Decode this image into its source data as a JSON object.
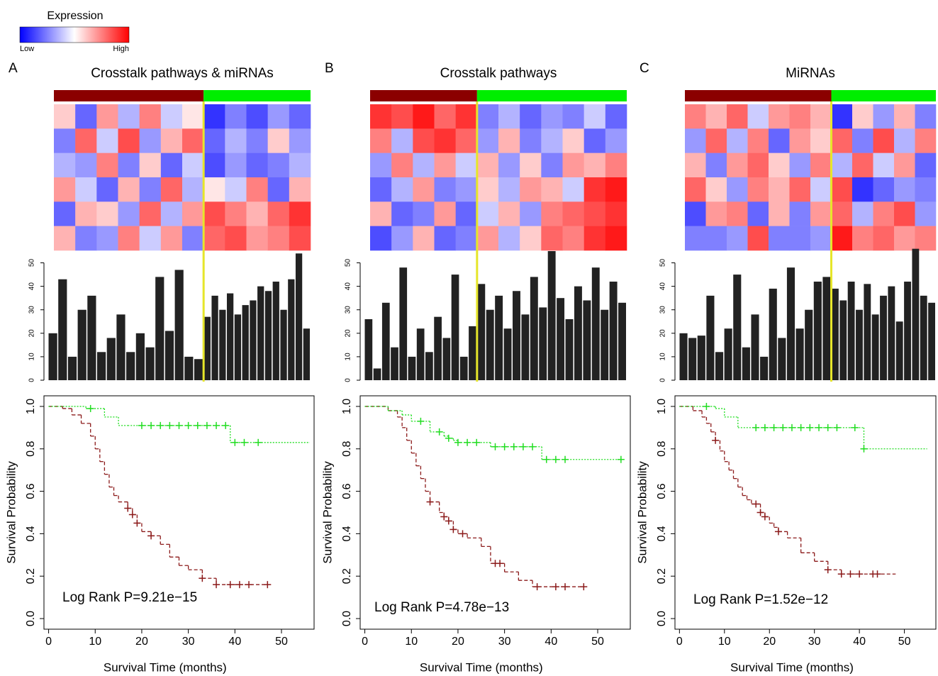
{
  "legend": {
    "title": "Expression",
    "low": "Low",
    "high": "High"
  },
  "chart_data": [
    {
      "label": "A",
      "title": "Crosstalk pathways & miRNAs",
      "heatmap": {
        "type": "heatmap",
        "group_colors": [
          "#8b0000",
          "#00ee00"
        ],
        "split": 7,
        "values": [
          [
            0.2,
            -0.6,
            0.4,
            -0.3,
            0.5,
            -0.2,
            0.1,
            -0.8,
            -0.5,
            -0.7,
            -0.4,
            -0.6
          ],
          [
            -0.5,
            0.6,
            -0.2,
            0.7,
            -0.4,
            0.3,
            0.6,
            -0.6,
            -0.3,
            -0.5,
            0.2,
            -0.4
          ],
          [
            -0.3,
            -0.4,
            0.5,
            -0.5,
            0.2,
            -0.6,
            -0.2,
            -0.7,
            -0.4,
            -0.6,
            -0.5,
            -0.3
          ],
          [
            0.4,
            -0.2,
            -0.6,
            0.3,
            -0.5,
            0.6,
            -0.3,
            0.1,
            -0.2,
            0.5,
            -0.6,
            0.3
          ],
          [
            -0.6,
            0.3,
            0.2,
            -0.4,
            0.6,
            -0.3,
            0.4,
            0.7,
            0.5,
            0.3,
            0.6,
            0.8
          ],
          [
            0.3,
            -0.5,
            -0.4,
            0.5,
            -0.2,
            0.4,
            -0.5,
            0.6,
            0.7,
            0.4,
            0.5,
            0.7
          ]
        ]
      },
      "bars": {
        "type": "bar",
        "color": "#222222",
        "split": 16,
        "ylim": [
          0,
          55
        ],
        "yticks": [
          0,
          10,
          20,
          30,
          40,
          50
        ],
        "values": [
          20,
          43,
          10,
          30,
          36,
          12,
          18,
          28,
          12,
          20,
          14,
          44,
          21,
          47,
          10,
          9,
          27,
          36,
          30,
          37,
          28,
          32,
          34,
          40,
          38,
          42,
          30,
          43,
          54,
          22
        ]
      },
      "survival": {
        "type": "line",
        "xlabel": "Survival Time (months)",
        "ylabel": "Survival Probability",
        "annotation": "Log Rank P=9.21e−15",
        "xlim": [
          -1,
          57
        ],
        "ylim": [
          -0.05,
          1.05
        ],
        "xticks": [
          0,
          10,
          20,
          30,
          40,
          50
        ],
        "yticks": [
          {
            "value": 0,
            "label": "0.0"
          },
          0.2,
          0.4,
          0.6,
          0.8,
          {
            "value": 1,
            "label": "1.0"
          }
        ],
        "series": [
          {
            "color": "#8b1a1a",
            "dash": "5,3",
            "x": [
              0,
              3,
              5,
              7,
              9,
              10,
              11,
              12,
              13,
              14,
              15,
              17,
              18,
              19,
              20,
              22,
              24,
              26,
              28,
              30,
              33,
              36,
              47
            ],
            "values": [
              1,
              0.99,
              0.96,
              0.92,
              0.86,
              0.8,
              0.74,
              0.68,
              0.62,
              0.58,
              0.55,
              0.52,
              0.49,
              0.45,
              0.41,
              0.39,
              0.35,
              0.29,
              0.25,
              0.23,
              0.19,
              0.16,
              0.16
            ],
            "censored_x": [
              17,
              18,
              19,
              22,
              33,
              36,
              39,
              41,
              43,
              47
            ]
          },
          {
            "color": "#22dd22",
            "dash": "2,2",
            "x": [
              0,
              8,
              12,
              15,
              17,
              39,
              56
            ],
            "values": [
              1,
              0.99,
              0.95,
              0.91,
              0.91,
              0.83,
              0.83
            ],
            "censored_x": [
              9,
              20,
              22,
              24,
              26,
              28,
              30,
              32,
              34,
              36,
              38,
              40,
              42,
              45
            ]
          }
        ]
      }
    },
    {
      "label": "B",
      "title": "Crosstalk pathways",
      "heatmap": {
        "type": "heatmap",
        "group_colors": [
          "#8b0000",
          "#00ee00"
        ],
        "split": 5,
        "values": [
          [
            0.8,
            0.7,
            0.9,
            0.6,
            0.8,
            -0.5,
            -0.3,
            -0.6,
            -0.4,
            -0.5,
            -0.2,
            -0.6
          ],
          [
            0.5,
            -0.3,
            0.7,
            0.8,
            0.6,
            -0.4,
            0.3,
            -0.5,
            -0.3,
            0.2,
            -0.6,
            -0.4
          ],
          [
            -0.4,
            0.5,
            -0.3,
            0.4,
            -0.2,
            0.3,
            -0.4,
            0.2,
            -0.5,
            0.4,
            0.3,
            0.5
          ],
          [
            -0.6,
            -0.3,
            0.4,
            -0.5,
            -0.4,
            0.2,
            -0.3,
            0.4,
            0.3,
            -0.2,
            0.8,
            0.9
          ],
          [
            0.3,
            -0.6,
            -0.5,
            0.4,
            -0.6,
            -0.2,
            0.3,
            -0.4,
            0.5,
            0.6,
            0.7,
            0.8
          ],
          [
            -0.7,
            -0.4,
            0.3,
            -0.6,
            -0.5,
            0.4,
            -0.3,
            0.2,
            0.6,
            0.5,
            0.8,
            0.9
          ]
        ]
      },
      "bars": {
        "type": "bar",
        "color": "#222222",
        "split": 13,
        "ylim": [
          0,
          55
        ],
        "yticks": [
          0,
          10,
          20,
          30,
          40,
          50
        ],
        "values": [
          26,
          5,
          33,
          14,
          48,
          10,
          22,
          12,
          27,
          18,
          45,
          10,
          23,
          41,
          30,
          36,
          22,
          38,
          28,
          44,
          31,
          55,
          35,
          26,
          40,
          34,
          48,
          30,
          42,
          33
        ]
      },
      "survival": {
        "type": "line",
        "xlabel": "Survival Time (months)",
        "ylabel": "Survival Probability",
        "annotation": "Log Rank P=4.78e−13",
        "xlim": [
          -1,
          57
        ],
        "ylim": [
          -0.05,
          1.05
        ],
        "xticks": [
          0,
          10,
          20,
          30,
          40,
          50
        ],
        "yticks": [
          {
            "value": 0,
            "label": "0.0"
          },
          0.2,
          0.4,
          0.6,
          0.8,
          {
            "value": 1,
            "label": "1.0"
          }
        ],
        "series": [
          {
            "color": "#8b1a1a",
            "dash": "5,3",
            "x": [
              0,
              5,
              7,
              8,
              9,
              10,
              11,
              12,
              13,
              14,
              16,
              17,
              18,
              19,
              20,
              22,
              25,
              27,
              30,
              33,
              36,
              47
            ],
            "values": [
              1,
              0.98,
              0.95,
              0.9,
              0.84,
              0.78,
              0.72,
              0.66,
              0.6,
              0.55,
              0.5,
              0.48,
              0.46,
              0.42,
              0.4,
              0.38,
              0.34,
              0.26,
              0.22,
              0.18,
              0.15,
              0.15
            ],
            "censored_x": [
              14,
              17,
              18,
              19,
              21,
              28,
              29,
              37,
              41,
              43,
              47
            ]
          },
          {
            "color": "#22dd22",
            "dash": "2,2",
            "x": [
              0,
              5,
              8,
              10,
              14,
              17,
              18,
              19,
              20,
              23,
              27,
              33,
              38,
              55
            ],
            "values": [
              1,
              0.98,
              0.96,
              0.93,
              0.88,
              0.86,
              0.85,
              0.84,
              0.83,
              0.83,
              0.81,
              0.81,
              0.75,
              0.75
            ],
            "censored_x": [
              12,
              16,
              18,
              20,
              22,
              24,
              28,
              30,
              32,
              34,
              36,
              39,
              41,
              43,
              55
            ]
          }
        ]
      }
    },
    {
      "label": "C",
      "title": "MiRNAs",
      "heatmap": {
        "type": "heatmap",
        "group_colors": [
          "#8b0000",
          "#00ee00"
        ],
        "split": 7,
        "values": [
          [
            0.5,
            0.3,
            0.6,
            -0.2,
            0.4,
            0.5,
            0.3,
            -0.8,
            0.2,
            -0.4,
            0.3,
            -0.5
          ],
          [
            -0.4,
            0.6,
            -0.3,
            0.5,
            -0.6,
            0.4,
            0.2,
            0.6,
            -0.5,
            0.7,
            -0.3,
            0.5
          ],
          [
            0.3,
            -0.5,
            0.4,
            0.6,
            0.2,
            -0.4,
            0.5,
            -0.3,
            0.6,
            -0.2,
            0.4,
            -0.6
          ],
          [
            0.6,
            0.2,
            -0.4,
            0.5,
            0.3,
            0.6,
            -0.2,
            0.7,
            -0.8,
            -0.6,
            -0.4,
            -0.5
          ],
          [
            -0.7,
            0.4,
            0.5,
            -0.6,
            0.3,
            -0.5,
            0.4,
            0.6,
            -0.3,
            0.5,
            0.7,
            -0.4
          ],
          [
            -0.5,
            -0.5,
            -0.4,
            0.7,
            -0.5,
            -0.5,
            -0.4,
            0.9,
            0.5,
            0.6,
            0.4,
            0.5
          ]
        ]
      },
      "bars": {
        "type": "bar",
        "color": "#222222",
        "split": 17,
        "ylim": [
          0,
          55
        ],
        "yticks": [
          0,
          10,
          20,
          30,
          40,
          50
        ],
        "values": [
          20,
          18,
          19,
          36,
          12,
          22,
          45,
          14,
          28,
          10,
          39,
          18,
          48,
          22,
          30,
          42,
          44,
          39,
          34,
          42,
          30,
          41,
          28,
          36,
          40,
          25,
          42,
          56,
          36,
          33
        ]
      },
      "survival": {
        "type": "line",
        "xlabel": "Survival Time (months)",
        "ylabel": "Survival Probability",
        "annotation": "Log Rank P=1.52e−12",
        "xlim": [
          -1,
          57
        ],
        "ylim": [
          -0.05,
          1.05
        ],
        "xticks": [
          0,
          10,
          20,
          30,
          40,
          50
        ],
        "yticks": [
          {
            "value": 0,
            "label": "0.0"
          },
          0.2,
          0.4,
          0.6,
          0.8,
          {
            "value": 1,
            "label": "1.0"
          }
        ],
        "series": [
          {
            "color": "#8b1a1a",
            "dash": "5,3",
            "x": [
              0,
              3,
              5,
              6,
              7,
              8,
              9,
              10,
              11,
              12,
              13,
              14,
              15,
              16,
              18,
              19,
              20,
              21,
              22,
              24,
              27,
              30,
              33,
              36,
              48
            ],
            "values": [
              1,
              0.98,
              0.95,
              0.92,
              0.88,
              0.84,
              0.79,
              0.74,
              0.7,
              0.66,
              0.62,
              0.58,
              0.56,
              0.54,
              0.5,
              0.48,
              0.45,
              0.43,
              0.41,
              0.38,
              0.31,
              0.27,
              0.23,
              0.21,
              0.21
            ],
            "censored_x": [
              8,
              17,
              18,
              19,
              22,
              33,
              36,
              38,
              40,
              43,
              44
            ]
          },
          {
            "color": "#22dd22",
            "dash": "2,2",
            "x": [
              0,
              8,
              10,
              13,
              38,
              41,
              55
            ],
            "values": [
              1,
              0.99,
              0.95,
              0.9,
              0.9,
              0.8,
              0.8
            ],
            "censored_x": [
              6,
              17,
              19,
              21,
              23,
              25,
              27,
              29,
              31,
              33,
              35,
              39,
              41
            ]
          }
        ]
      }
    }
  ]
}
